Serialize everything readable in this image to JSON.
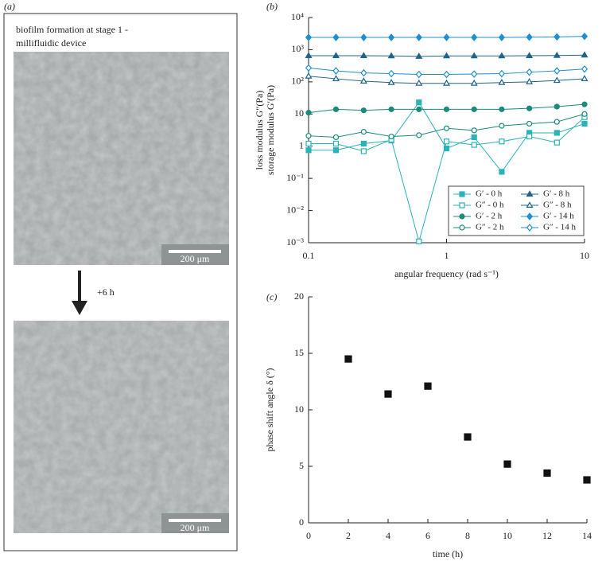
{
  "panel_a": {
    "label": "(a)",
    "caption_lines": [
      "biofilm formation at stage 1 -",
      "millifluidic device"
    ],
    "scale_bars": [
      "200 μm",
      "200 μm"
    ],
    "step": "+6 h"
  },
  "chart_data": [
    {
      "type": "line",
      "panel_label": "(b)",
      "log_x": true,
      "log_y": true,
      "ylabel_lines": [
        "loss modulus G″(Pa)",
        "storage modulus G′(Pa)"
      ],
      "xlabel": "angular frequency (rad s⁻¹)",
      "x": [
        0.1,
        0.158,
        0.251,
        0.398,
        0.631,
        1,
        1.585,
        2.512,
        3.981,
        6.31,
        10
      ],
      "xlim": [
        0.1,
        10
      ],
      "xticks": [
        0.1,
        1,
        10
      ],
      "ylim": [
        0.001,
        10000
      ],
      "yticks": [
        {
          "value": 0.001,
          "label": "10⁻³"
        },
        {
          "value": 0.01,
          "label": "10⁻²"
        },
        {
          "value": 0.1,
          "label": "10⁻¹"
        },
        1,
        10,
        {
          "value": 100,
          "label": "10²"
        },
        {
          "value": 1000,
          "label": "10³"
        },
        {
          "value": 10000,
          "label": "10⁴"
        }
      ],
      "legend": "lower right",
      "series": [
        {
          "name": "G′ - 0 h",
          "color": "#2ab3b8",
          "marker": "square",
          "filled": true,
          "values": [
            0.75,
            0.75,
            1.2,
            1.5,
            23,
            0.85,
            1.9,
            0.16,
            2.6,
            2.6,
            5
          ]
        },
        {
          "name": "G″ - 0 h",
          "color": "#2ab3b8",
          "marker": "square",
          "filled": false,
          "values": [
            1.2,
            1.2,
            0.7,
            1.6,
            0.0011,
            1.4,
            1.1,
            1.4,
            2,
            1.3,
            8
          ]
        },
        {
          "name": "G′ - 2 h",
          "color": "#1b8a7c",
          "marker": "circle",
          "filled": true,
          "values": [
            11,
            14,
            13,
            14,
            14,
            14,
            14,
            14,
            15,
            17,
            20
          ]
        },
        {
          "name": "G″ - 2 h",
          "color": "#1b8a7c",
          "marker": "circle",
          "filled": false,
          "values": [
            2.1,
            1.9,
            2.8,
            2,
            2.2,
            3.6,
            3.1,
            4.3,
            5,
            5.7,
            10
          ]
        },
        {
          "name": "G′ - 8 h",
          "color": "#1f6488",
          "marker": "triangle",
          "filled": true,
          "values": [
            650,
            650,
            650,
            640,
            620,
            640,
            640,
            640,
            650,
            660,
            680
          ]
        },
        {
          "name": "G″ - 8 h",
          "color": "#1f6488",
          "marker": "triangle",
          "filled": false,
          "values": [
            150,
            125,
            105,
            95,
            90,
            90,
            90,
            95,
            100,
            110,
            125
          ]
        },
        {
          "name": "G′ - 14 h",
          "color": "#1f8fd0",
          "marker": "diamond",
          "filled": true,
          "values": [
            2400,
            2400,
            2400,
            2400,
            2400,
            2400,
            2400,
            2400,
            2450,
            2500,
            2600
          ]
        },
        {
          "name": "G″ - 14 h",
          "color": "#1f8fd0",
          "marker": "diamond",
          "filled": false,
          "values": [
            270,
            220,
            190,
            180,
            170,
            170,
            175,
            180,
            200,
            220,
            250
          ]
        }
      ]
    },
    {
      "type": "scatter",
      "panel_label": "(c)",
      "log_x": false,
      "log_y": false,
      "ylabel_lines": [
        "phase shift angle δ (°)"
      ],
      "xlabel": "time (h)",
      "x": [
        2,
        4,
        6,
        8,
        10,
        12,
        14
      ],
      "xlim": [
        0,
        14
      ],
      "xticks": [
        0,
        2,
        4,
        6,
        8,
        10,
        12,
        14
      ],
      "ylim": [
        0,
        20
      ],
      "yticks": [
        0,
        5,
        10,
        15,
        20
      ],
      "series": [
        {
          "name": null,
          "color": "#111111",
          "marker": "square",
          "filled": true,
          "values": [
            14.5,
            11.4,
            12.1,
            7.6,
            5.2,
            4.4,
            3.8
          ]
        }
      ]
    }
  ]
}
